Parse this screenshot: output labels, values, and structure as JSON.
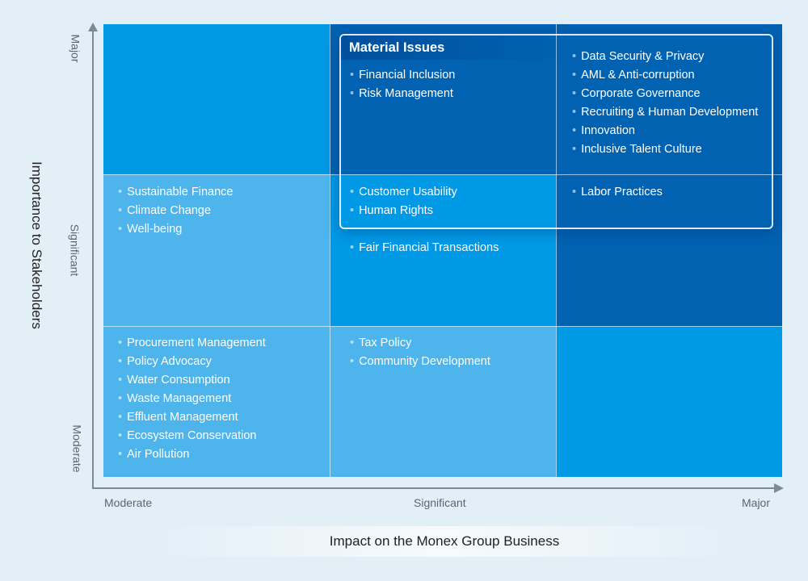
{
  "colors": {
    "background": "#e3eff7",
    "moderate": "#4db5ec",
    "significant": "#0099e6",
    "major": "#0062b1"
  },
  "y_axis": {
    "title": "Importance to Stakeholders",
    "ticks": [
      "Major",
      "Significant",
      "Moderate"
    ]
  },
  "x_axis": {
    "title": "Impact on the Monex Group Business",
    "ticks": [
      "Moderate",
      "Significant",
      "Major"
    ]
  },
  "material_box": {
    "title": "Material Issues"
  },
  "cells": {
    "major_significant": [
      "Financial Inclusion",
      "Risk Management"
    ],
    "major_major": [
      "Data Security & Privacy",
      "AML & Anti-corruption",
      "Corporate Governance",
      "Recruiting & Human Development",
      "Innovation",
      "Inclusive Talent Culture"
    ],
    "significant_moderate": [
      "Sustainable Finance",
      "Climate Change",
      "Well-being"
    ],
    "significant_significant_material": [
      "Customer Usability",
      "Human Rights"
    ],
    "significant_significant": [
      "Fair Financial Transactions"
    ],
    "significant_major": [
      "Labor Practices"
    ],
    "moderate_moderate": [
      "Procurement Management",
      "Policy Advocacy",
      "Water Consumption",
      "Waste Management",
      "Effluent Management",
      "Ecosystem Conservation",
      "Air Pollution"
    ],
    "moderate_significant": [
      "Tax Policy",
      "Community Development"
    ]
  }
}
